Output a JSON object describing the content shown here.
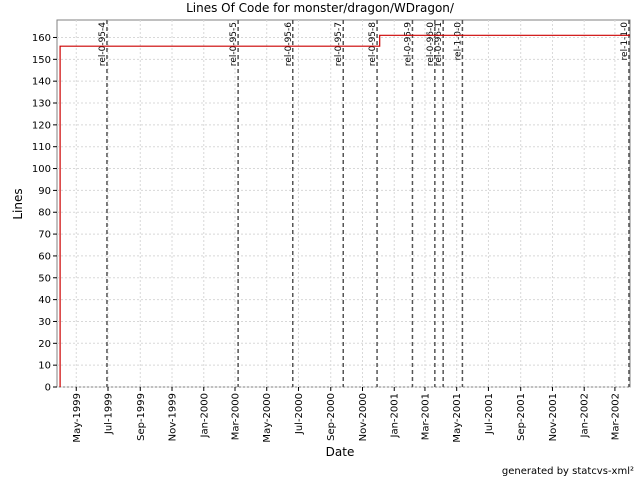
{
  "chart_data": {
    "type": "line",
    "title": "Lines Of Code for monster/dragon/WDragon/",
    "xlabel": "Date",
    "ylabel": "Lines",
    "footer": "generated by statcvs-xml²",
    "ylim": [
      0,
      168
    ],
    "xlim": [
      "1999-03-25",
      "2002-03-30"
    ],
    "yticks": [
      0,
      10,
      20,
      30,
      40,
      50,
      60,
      70,
      80,
      90,
      100,
      110,
      120,
      130,
      140,
      150,
      160
    ],
    "xticks": [
      {
        "date": "1999-05-01",
        "label": "May-1999"
      },
      {
        "date": "1999-07-01",
        "label": "Jul-1999"
      },
      {
        "date": "1999-09-01",
        "label": "Sep-1999"
      },
      {
        "date": "1999-11-01",
        "label": "Nov-1999"
      },
      {
        "date": "2000-01-01",
        "label": "Jan-2000"
      },
      {
        "date": "2000-03-01",
        "label": "Mar-2000"
      },
      {
        "date": "2000-05-01",
        "label": "May-2000"
      },
      {
        "date": "2000-07-01",
        "label": "Jul-2000"
      },
      {
        "date": "2000-09-01",
        "label": "Sep-2000"
      },
      {
        "date": "2000-11-01",
        "label": "Nov-2000"
      },
      {
        "date": "2001-01-01",
        "label": "Jan-2001"
      },
      {
        "date": "2001-03-01",
        "label": "Mar-2001"
      },
      {
        "date": "2001-05-01",
        "label": "May-2001"
      },
      {
        "date": "2001-07-01",
        "label": "Jul-2001"
      },
      {
        "date": "2001-09-01",
        "label": "Sep-2001"
      },
      {
        "date": "2001-11-01",
        "label": "Nov-2001"
      },
      {
        "date": "2002-01-01",
        "label": "Jan-2002"
      },
      {
        "date": "2002-03-01",
        "label": "Mar-2002"
      }
    ],
    "series": [
      {
        "color": "#cc0000",
        "step": true,
        "points": [
          {
            "x": "1999-03-31",
            "y": 0
          },
          {
            "x": "1999-03-31",
            "y": 156
          },
          {
            "x": "2000-12-04",
            "y": 156
          },
          {
            "x": "2000-12-04",
            "y": 161
          },
          {
            "x": "2002-03-30",
            "y": 161
          }
        ]
      }
    ],
    "markers": [
      {
        "date": "1999-06-29",
        "label": "rel-0-95-4"
      },
      {
        "date": "2000-03-07",
        "label": "rel-0-95-5"
      },
      {
        "date": "2000-06-20",
        "label": "rel-0-95-6"
      },
      {
        "date": "2000-09-25",
        "label": "rel-0-95-7"
      },
      {
        "date": "2000-11-29",
        "label": "rel-0-95-8"
      },
      {
        "date": "2001-02-05",
        "label": "rel-0-95-9"
      },
      {
        "date": "2001-03-20",
        "label": "rel-0-96-0"
      },
      {
        "date": "2001-04-05",
        "label": "rel-0-96-1"
      },
      {
        "date": "2001-05-12",
        "label": "rel-1-0-0"
      },
      {
        "date": "2002-03-28",
        "label": "rel-1-1-0"
      }
    ],
    "grid": true,
    "colors": {
      "grid": "#d8d8d8",
      "axis": "#000000",
      "marker": "#555555",
      "line": "#cc0000"
    }
  }
}
